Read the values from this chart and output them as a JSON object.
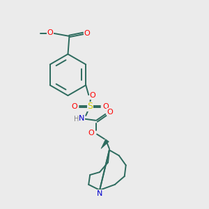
{
  "background_color": "#ebebeb",
  "bond_color": "#2d6b5e",
  "colors": {
    "O": "#ff0000",
    "S": "#cccc00",
    "N": "#0000cc",
    "H": "#888888",
    "C_bond": "#2d6b5e"
  }
}
